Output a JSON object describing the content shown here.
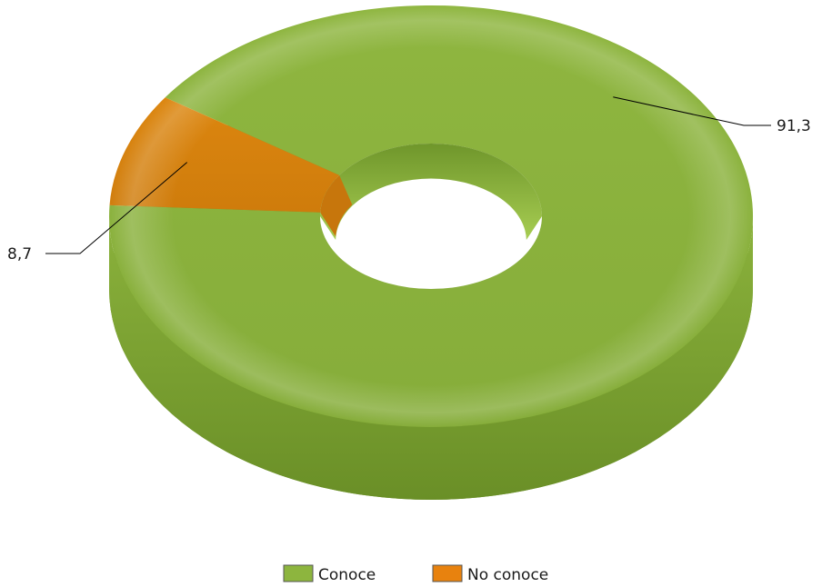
{
  "chart_data": {
    "type": "pie",
    "variant": "3d-donut",
    "categories": [
      "Conoce",
      "No conoce"
    ],
    "values": [
      91.3,
      8.7
    ],
    "value_labels": [
      "91,3",
      "8,7"
    ],
    "colors": [
      "#8db53e",
      "#e8820e"
    ],
    "legend": {
      "placement": "bottom",
      "entries": [
        "Conoce",
        "No conoce"
      ]
    }
  }
}
